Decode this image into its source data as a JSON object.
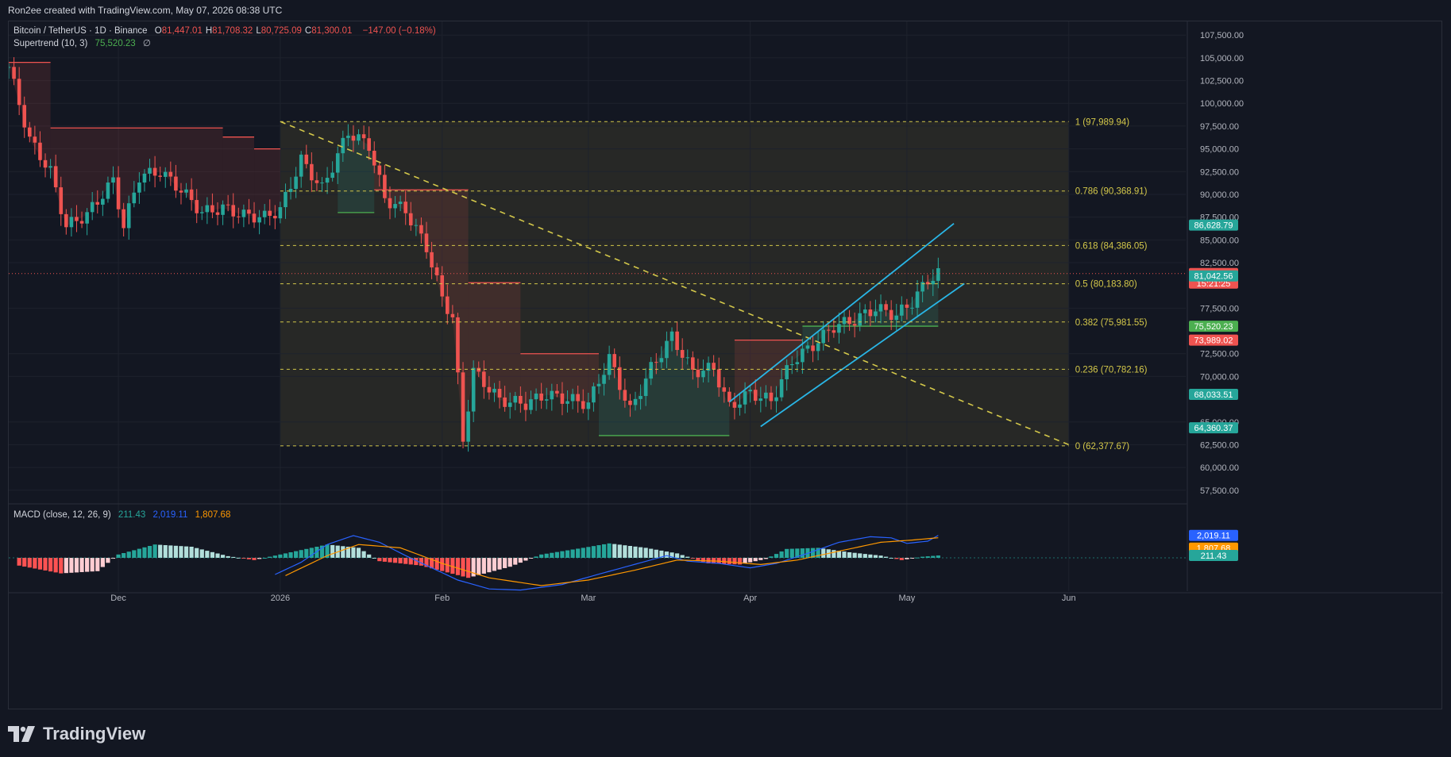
{
  "header": {
    "credit": "Ron2ee created with TradingView.com, May 07, 2026 08:38 UTC"
  },
  "legend": {
    "symbol": "Bitcoin / TetherUS · 1D · Binance",
    "ohlc": [
      {
        "k": "O",
        "v": "81,447.01"
      },
      {
        "k": "H",
        "v": "81,708.32"
      },
      {
        "k": "L",
        "v": "80,725.09"
      },
      {
        "k": "C",
        "v": "81,300.01"
      }
    ],
    "change": "−147.00 (−0.18%)",
    "supertrend_label": "Supertrend (10, 3)",
    "supertrend_value": "75,520.23",
    "supertrend_extra": "∅",
    "macd_label": "MACD (close, 12, 26, 9)",
    "macd_hist": "211.43",
    "macd_line": "2,019.11",
    "macd_signal": "1,807.68"
  },
  "colors": {
    "background": "#131722",
    "up": "#26a69a",
    "down": "#ef5350",
    "fib": "#d4c84a",
    "channel": "#29b6e6",
    "macd_line": "#2962ff",
    "signal": "#ff9800"
  },
  "footer": {
    "brand": "TradingView",
    "logo_icon": "tradingview-logo-icon"
  },
  "chart_data": {
    "type": "candlestick",
    "title": "Bitcoin / TetherUS · 1D · Binance",
    "xlabel": "",
    "ylabel": "",
    "ylim": [
      56000,
      109000
    ],
    "yticks": [
      "107,500.00",
      "105,000.00",
      "102,500.00",
      "100,000.00",
      "97,500.00",
      "95,000.00",
      "92,500.00",
      "90,000.00",
      "87,500.00",
      "85,000.00",
      "82,500.00",
      "77,500.00",
      "72,500.00",
      "70,000.00",
      "65,000.00",
      "62,500.00",
      "60,000.00",
      "57,500.00"
    ],
    "ytick_values": [
      107500,
      105000,
      102500,
      100000,
      97500,
      95000,
      92500,
      90000,
      87500,
      85000,
      82500,
      77500,
      72500,
      70000,
      65000,
      62500,
      60000,
      57500
    ],
    "xtick_labels": [
      "Dec",
      "2026",
      "Feb",
      "Mar",
      "Apr",
      "May",
      "Jun"
    ],
    "xtick_dates": [
      "2025-12-01",
      "2026-01-01",
      "2026-02-01",
      "2026-03-01",
      "2026-04-01",
      "2026-05-01",
      "2026-06-01"
    ],
    "x_start_date": "2025-11-10",
    "close_series": {
      "2025-11-10": 104000,
      "2025-11-14": 96000,
      "2025-11-18": 92500,
      "2025-11-21": 86500,
      "2025-11-25": 87800,
      "2025-11-30": 91500,
      "2025-12-02": 86500,
      "2025-12-05": 92000,
      "2025-12-09": 92500,
      "2025-12-13": 90500,
      "2025-12-17": 88000,
      "2025-12-21": 88500,
      "2025-12-25": 87700,
      "2025-12-29": 87500,
      "2026-01-01": 88300,
      "2026-01-05": 93800,
      "2026-01-09": 90600,
      "2026-01-14": 96800,
      "2026-01-18": 95400,
      "2026-01-21": 89500,
      "2026-01-25": 88200,
      "2026-01-29": 84200,
      "2026-02-01": 78600,
      "2026-02-03": 76500,
      "2026-02-05": 63000,
      "2026-02-07": 70600,
      "2026-02-12": 67400,
      "2026-02-17": 67000,
      "2026-02-21": 68000,
      "2026-02-25": 67500,
      "2026-03-01": 67000,
      "2026-03-05": 72000,
      "2026-03-09": 66200,
      "2026-03-13": 70900,
      "2026-03-17": 74400,
      "2026-03-21": 70500,
      "2026-03-25": 70900,
      "2026-03-28": 66600,
      "2026-04-01": 68200,
      "2026-04-05": 67300,
      "2026-04-09": 71700,
      "2026-04-13": 73400,
      "2026-04-17": 75500,
      "2026-04-21": 76200,
      "2026-04-25": 77500,
      "2026-04-29": 76700,
      "2026-05-02": 78200,
      "2026-05-05": 80600,
      "2026-05-07": 81300
    },
    "last_close": 81300.01,
    "supertrend": {
      "current": 75520.23,
      "downtrend_segments": [
        {
          "from": "2025-11-10",
          "to": "2025-11-18",
          "value": 104500
        },
        {
          "from": "2025-11-18",
          "to": "2025-12-21",
          "value": 97300
        },
        {
          "from": "2025-12-21",
          "to": "2025-12-27",
          "value": 96300
        },
        {
          "from": "2025-12-27",
          "to": "2026-01-01",
          "value": 95000
        },
        {
          "from": "2026-01-19",
          "to": "2026-02-06",
          "value": 90500
        },
        {
          "from": "2026-02-06",
          "to": "2026-02-16",
          "value": 80300
        },
        {
          "from": "2026-02-16",
          "to": "2026-03-03",
          "value": 72500
        },
        {
          "from": "2026-03-29",
          "to": "2026-04-11",
          "value": 73989.02
        }
      ],
      "uptrend_segments": [
        {
          "from": "2026-01-12",
          "to": "2026-01-19",
          "value": 88000
        },
        {
          "from": "2026-03-03",
          "to": "2026-03-28",
          "value": 63500
        },
        {
          "from": "2026-04-11",
          "to": "2026-05-07",
          "value": 75520.23
        }
      ]
    },
    "fibonacci": [
      {
        "level": 1,
        "price": 97989.94,
        "label": "1 (97,989.94)"
      },
      {
        "level": 0.786,
        "price": 90368.91,
        "label": "0.786 (90,368.91)"
      },
      {
        "level": 0.618,
        "price": 84386.05,
        "label": "0.618 (84,386.05)"
      },
      {
        "level": 0.5,
        "price": 80183.8,
        "label": "0.5 (80,183.80)"
      },
      {
        "level": 0.382,
        "price": 75981.55,
        "label": "0.382 (75,981.55)"
      },
      {
        "level": 0.236,
        "price": 70782.16,
        "label": "0.236 (70,782.16)"
      },
      {
        "level": 0,
        "price": 62377.67,
        "label": "0 (62,377.67)"
      }
    ],
    "fib_range": {
      "from": "2026-01-01",
      "to": "2026-06-01"
    },
    "trendline": {
      "from": {
        "date": "2026-01-01",
        "price": 98000
      },
      "to": {
        "date": "2026-06-01",
        "price": 62500
      }
    },
    "channel": {
      "upper": {
        "from": {
          "date": "2026-03-28",
          "price": 67200
        },
        "to": {
          "date": "2026-05-10",
          "price": 86800
        }
      },
      "lower": {
        "from": {
          "date": "2026-04-03",
          "price": 64500
        },
        "to": {
          "date": "2026-05-12",
          "price": 80200
        }
      }
    },
    "price_tags": [
      {
        "label": "86,628.79",
        "price": 86628.79,
        "color": "#26a69a"
      },
      {
        "label": "81,300.01",
        "sub": "15:21:25",
        "price": 81300.01,
        "color": "#ef5350"
      },
      {
        "label": "81,042.56",
        "price": 81042.56,
        "color": "#26a69a"
      },
      {
        "label": "75,520.23",
        "price": 75520.23,
        "color": "#4caf50"
      },
      {
        "label": "73,989.02",
        "price": 73989.02,
        "color": "#ef5350"
      },
      {
        "label": "68,033.51",
        "price": 68033.51,
        "color": "#26a69a"
      },
      {
        "label": "64,360.37",
        "price": 64360.37,
        "color": "#26a69a"
      }
    ],
    "macd": {
      "histogram_last": 211.43,
      "macd_last": 2019.11,
      "signal_last": 1807.68,
      "histogram_series": {
        "2025-11-12": -700,
        "2025-11-20": -1400,
        "2025-11-27": -1200,
        "2025-12-01": 300,
        "2025-12-08": 1200,
        "2025-12-15": 1000,
        "2025-12-22": 150,
        "2025-12-27": -200,
        "2026-01-03": 500,
        "2026-01-10": 1200,
        "2026-01-16": 900,
        "2026-01-20": -300,
        "2026-01-28": -700,
        "2026-02-06": -1800,
        "2026-02-14": -800,
        "2026-02-20": 300,
        "2026-02-28": 900,
        "2026-03-05": 1300,
        "2026-03-12": 900,
        "2026-03-18": 400,
        "2026-03-24": -500,
        "2026-03-30": -600,
        "2026-04-04": -100,
        "2026-04-08": 800,
        "2026-04-14": 900,
        "2026-04-20": 500,
        "2026-04-26": 200,
        "2026-04-30": -200,
        "2026-05-04": 100,
        "2026-05-07": 211.43
      },
      "macd_series": {
        "2025-12-31": -1500,
        "2026-01-05": -400,
        "2026-01-10": 1200,
        "2026-01-15": 2000,
        "2026-01-20": 1400,
        "2026-01-25": 200,
        "2026-01-30": -900,
        "2026-02-04": -2000,
        "2026-02-10": -2800,
        "2026-02-16": -2900,
        "2026-02-24": -2400,
        "2026-03-02": -1600,
        "2026-03-09": -700,
        "2026-03-16": 200,
        "2026-03-20": -300,
        "2026-03-26": -500,
        "2026-04-01": -900,
        "2026-04-06": -500,
        "2026-04-12": 400,
        "2026-04-18": 1400,
        "2026-04-24": 1900,
        "2026-04-28": 1800,
        "2026-05-01": 1300,
        "2026-05-05": 1500,
        "2026-05-07": 2019.11
      },
      "signal_series": {
        "2026-01-02": -1600,
        "2026-01-10": 200,
        "2026-01-16": 1200,
        "2026-01-24": 900,
        "2026-02-01": -500,
        "2026-02-10": -1800,
        "2026-02-20": -2500,
        "2026-03-01": -2000,
        "2026-03-10": -1100,
        "2026-03-18": -200,
        "2026-03-26": -300,
        "2026-04-03": -600,
        "2026-04-10": -200,
        "2026-04-18": 600,
        "2026-04-26": 1400,
        "2026-05-02": 1600,
        "2026-05-07": 1807.68
      }
    }
  }
}
